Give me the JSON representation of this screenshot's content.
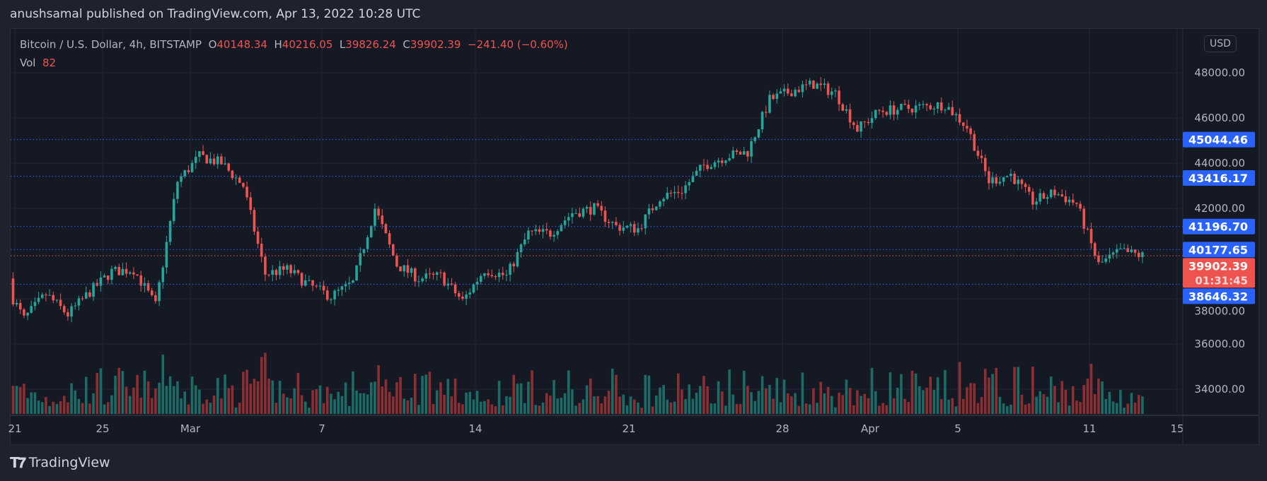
{
  "header": {
    "published": "anushsamal published on TradingView.com, Apr 13, 2022 10:28 UTC"
  },
  "legend": {
    "symbol": "Bitcoin / U.S. Dollar, 4h, BITSTAMP",
    "o_label": "O",
    "o": "40148.34",
    "h_label": "H",
    "h": "40216.05",
    "l_label": "L",
    "l": "39826.24",
    "c_label": "C",
    "c": "39902.39",
    "change": "−241.40 (−0.60%)",
    "vol_label": "Vol",
    "vol": "82"
  },
  "currency": "USD",
  "footer": {
    "brand": "TradingView",
    "logo_icon": "tradingview-logo-icon"
  },
  "chart_data": {
    "type": "candlestick",
    "title": "Bitcoin / U.S. Dollar, 4h, BITSTAMP",
    "ylim": [
      33000,
      48600
    ],
    "y_ticks": [
      "48000.00",
      "46000.00",
      "44000.00",
      "42000.00",
      "38000.00",
      "36000.00",
      "34000.00"
    ],
    "y_tick_values": [
      48000,
      46000,
      44000,
      42000,
      38000,
      36000,
      34000
    ],
    "x_ticks": [
      {
        "label": "21",
        "day": 0
      },
      {
        "label": "25",
        "day": 4
      },
      {
        "label": "Mar",
        "day": 8
      },
      {
        "label": "7",
        "day": 14
      },
      {
        "label": "14",
        "day": 21
      },
      {
        "label": "21",
        "day": 28
      },
      {
        "label": "28",
        "day": 35
      },
      {
        "label": "Apr",
        "day": 39
      },
      {
        "label": "5",
        "day": 43
      },
      {
        "label": "11",
        "day": 49
      },
      {
        "label": "15",
        "day": 53
      }
    ],
    "daily_close_anchors": {
      "start_day": -1,
      "values": [
        38900,
        37100,
        38200,
        37300,
        38300,
        39200,
        39300,
        37700,
        43200,
        44300,
        44000,
        43000,
        39100,
        39300,
        38600,
        38100,
        38700,
        42000,
        39500,
        38900,
        39000,
        37900,
        39300,
        39000,
        40900,
        40900,
        41800,
        42000,
        41200,
        41100,
        42500,
        42800,
        43900,
        44300,
        44500,
        46800,
        47200,
        47500,
        47100,
        45500,
        46300,
        46400,
        46500,
        46600,
        45600,
        43200,
        43500,
        42300,
        42700,
        42200,
        39500,
        40100,
        39902
      ]
    },
    "horizontal_levels": [
      {
        "label": "45044.46",
        "value": 45044.46,
        "color": "#2962ff"
      },
      {
        "label": "43416.17",
        "value": 43416.17,
        "color": "#2962ff"
      },
      {
        "label": "41196.70",
        "value": 41196.7,
        "color": "#2962ff"
      },
      {
        "label": "40177.65",
        "value": 40177.65,
        "color": "#2962ff"
      },
      {
        "label": "38646.32",
        "value": 38646.32,
        "color": "#2962ff"
      }
    ],
    "last_price": {
      "label": "39902.39",
      "value": 39902.39,
      "countdown": "01:31:45",
      "color": "#ef5350"
    },
    "colors": {
      "up": "#26a69a",
      "down": "#ef5350",
      "up_vol": "#1b6b66",
      "down_vol": "#8c2f33"
    }
  }
}
